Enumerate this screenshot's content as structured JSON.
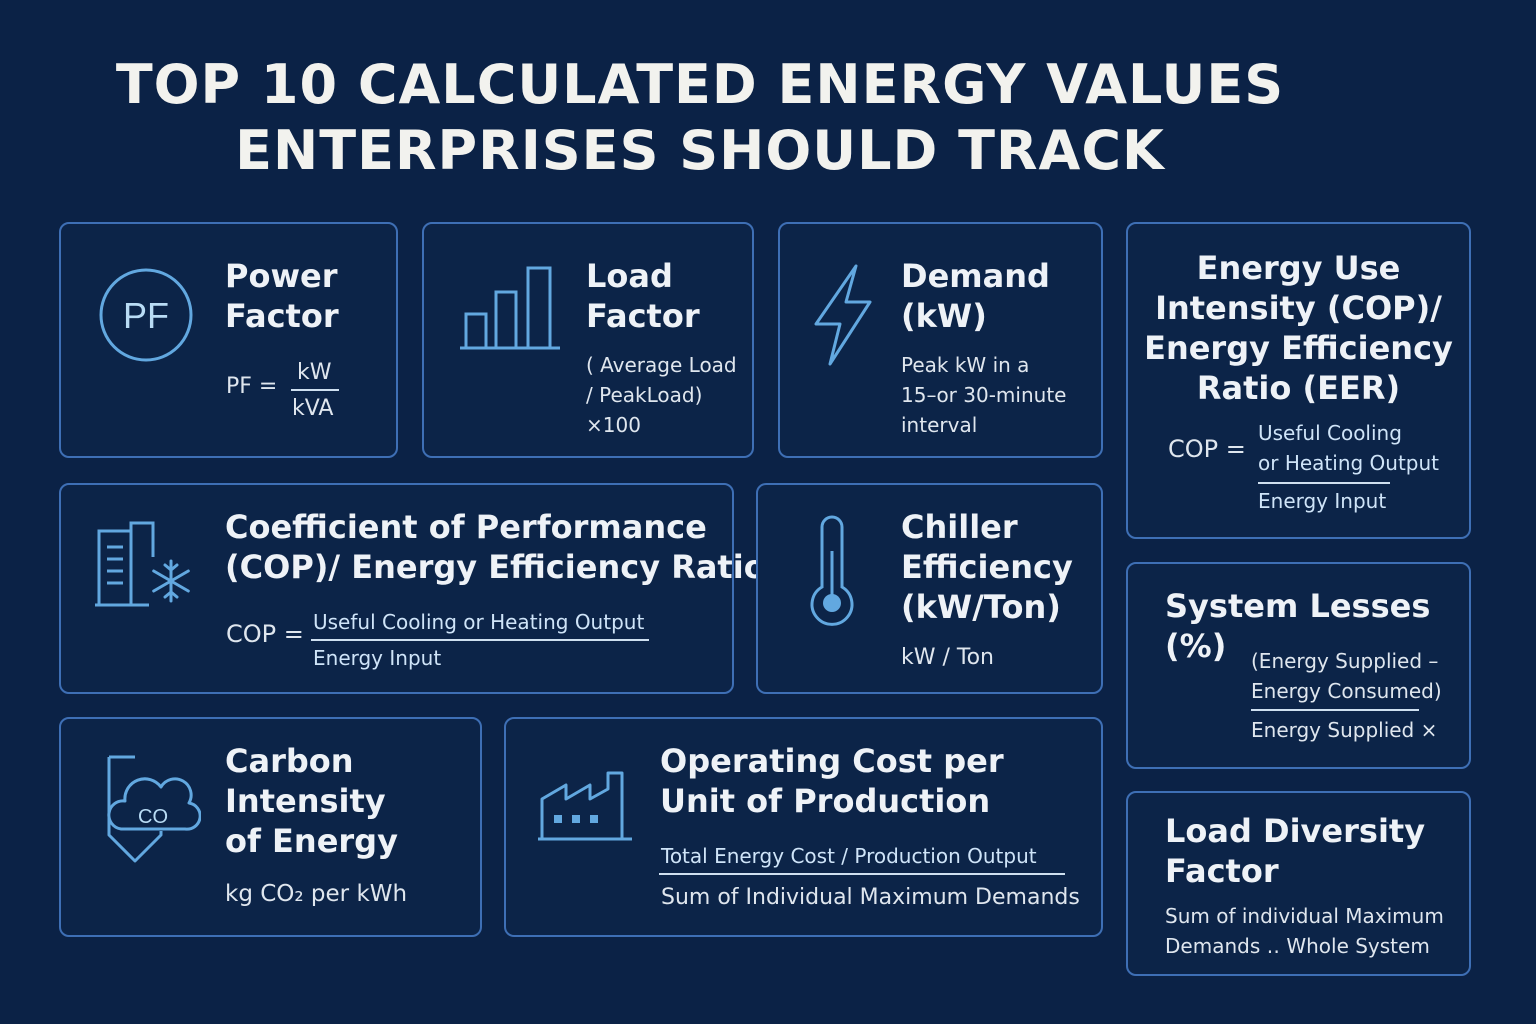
{
  "title": {
    "line1": "TOP 10 CALCULATED ENERGY VALUES",
    "line2": "ENTERPRISES SHOULD TRACK"
  },
  "colors": {
    "background": "#0b2246",
    "card_border": "#3e6fb5",
    "icon": "#62a8e0",
    "text": "#eef2f7"
  },
  "cards": {
    "power_factor": {
      "title1": "Power",
      "title2": "Factor",
      "icon": "pf-circle-icon",
      "icon_text": "PF",
      "formula_lhs": "PF =",
      "numerator": "kW",
      "denominator": "kVA"
    },
    "load_factor": {
      "title1": "Load",
      "title2": "Factor",
      "icon": "bar-chart-icon",
      "line1": "( Average Load",
      "line2": "/ PeakLoad)",
      "line3": "×100"
    },
    "demand": {
      "title1": "Demand",
      "title2": "(kW)",
      "icon": "lightning-icon",
      "line1": "Peak kW in a",
      "line2": "15–or 30-minute",
      "line3": "interval"
    },
    "energy_use_intensity": {
      "title1": "Energy Use",
      "title2": "Intensity (COP)/",
      "title3": "Energy Efficiency",
      "title4": "Ratio (EER)",
      "formula_lhs": "COP =",
      "numerator1": "Useful Cooling",
      "numerator2": "or Heating Output",
      "denominator": "Energy Input"
    },
    "cop": {
      "title1": "Coefficient of Performance",
      "title2": "(COP)/ Energy Efficiency Ratio",
      "icon": "building-snowflake-icon",
      "formula_lhs": "COP =",
      "numerator": "Useful Cooling or Heating Output",
      "denominator": "Energy Input"
    },
    "chiller": {
      "title1": "Chiller",
      "title2": "Efficiency",
      "title3": "(kW/Ton)",
      "icon": "thermometer-icon",
      "formula": "kW / Ton"
    },
    "system_losses": {
      "title1": "System Lesses",
      "title2": "(%)",
      "line1": "(Energy Supplied –",
      "line2": "Energy Consumed)",
      "denominator": "Energy Supplied ×"
    },
    "carbon": {
      "title1": "Carbon",
      "title2": "Intensity",
      "title3": "of Energy",
      "icon": "co2-cloud-icon",
      "icon_text": "CO",
      "formula": "kg CO₂ per kWh"
    },
    "operating_cost": {
      "title1": "Operating Cost per",
      "title2": "Unit of Production",
      "icon": "factory-icon",
      "formula": "Total Energy Cost  /  Production Output",
      "note": "Sum of Individual Maximum Demands"
    },
    "load_diversity": {
      "title1": "Load Diversity",
      "title2": "Factor",
      "line1": "Sum of individual Maximum",
      "line2": "Demands ․․ Whole System"
    }
  }
}
